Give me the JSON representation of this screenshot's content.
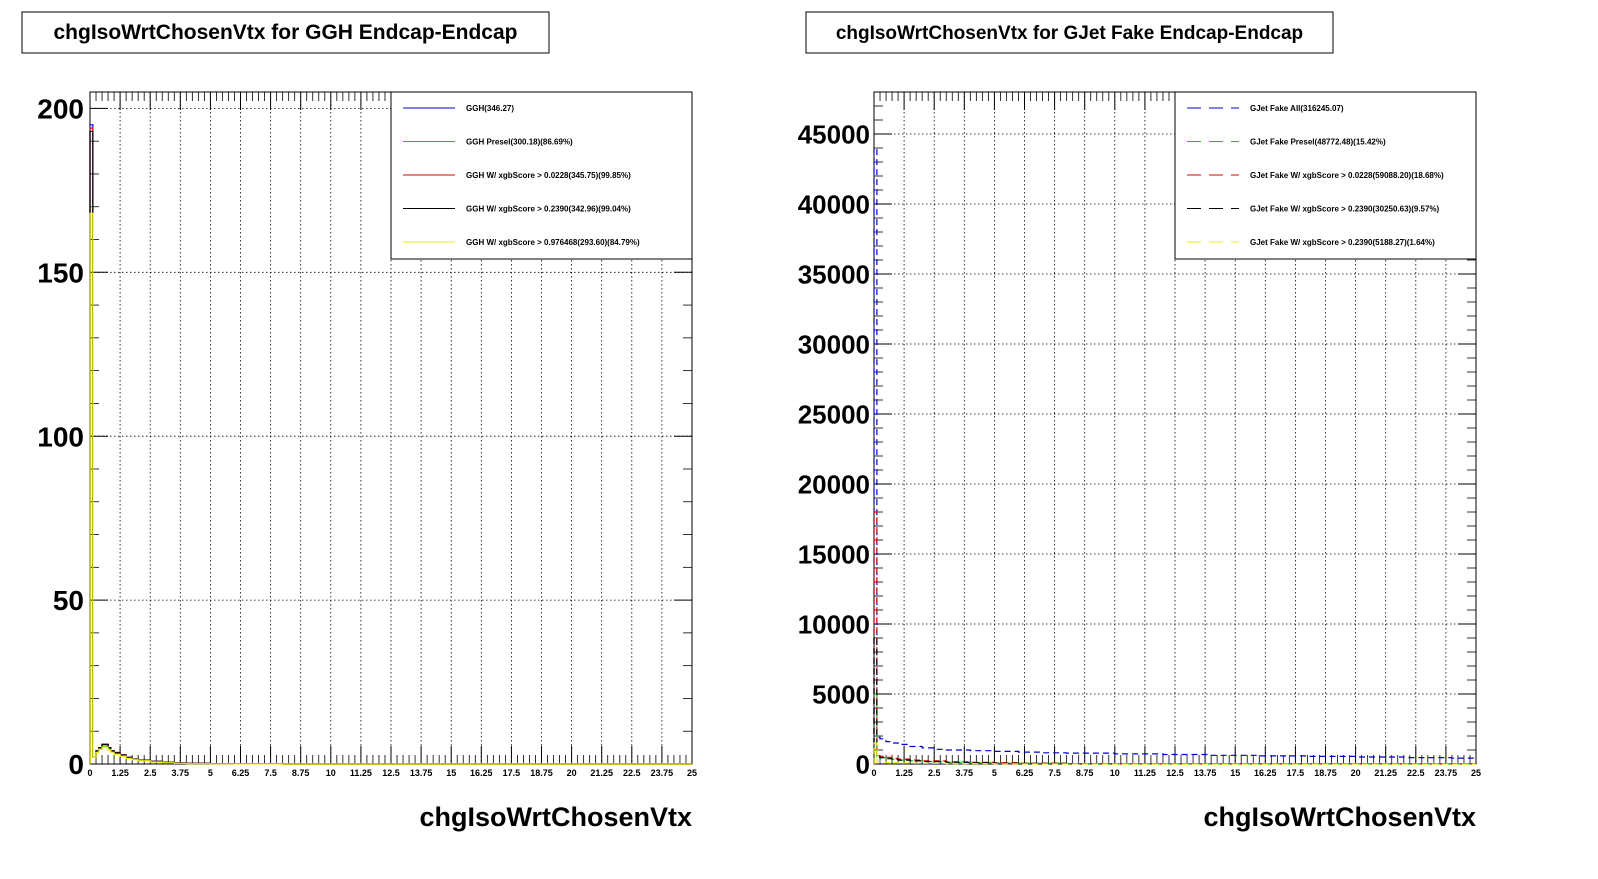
{
  "chart_data": [
    {
      "type": "line",
      "title": "chgIsoWrtChosenVtx for GGH Endcap-Endcap",
      "xlabel": "chgIsoWrtChosenVtx",
      "ylabel": "",
      "xlim": [
        0,
        25
      ],
      "ylim": [
        0,
        205
      ],
      "y_ticks": [
        0,
        50,
        100,
        150,
        200
      ],
      "y_tick_labels": [
        "0",
        "50",
        "100",
        "150",
        "200"
      ],
      "x_ticks": [
        0,
        1.25,
        2.5,
        3.75,
        5,
        6.25,
        7.5,
        8.75,
        10,
        11.25,
        12.5,
        13.75,
        15,
        16.25,
        17.5,
        18.75,
        20,
        21.25,
        22.5,
        23.75,
        25
      ],
      "x_tick_labels": [
        "0",
        "1.25",
        "2.5",
        "3.75",
        "5",
        "6.25",
        "7.5",
        "8.75",
        "10",
        "11.25",
        "12.5",
        "13.75",
        "15",
        "16.25",
        "17.5",
        "18.75",
        "20",
        "21.25",
        "22.5",
        "23.75",
        "25"
      ],
      "grid": true,
      "legend_position": "top-right",
      "series": [
        {
          "name": "GGH(346.27)",
          "color": "#0000cc",
          "dash": false,
          "x": [
            0,
            0.12,
            0.25,
            0.37,
            0.5,
            0.62,
            0.75,
            0.87,
            1,
            1.25,
            1.5,
            1.75,
            2,
            2.5,
            3,
            3.5,
            4,
            5,
            6,
            8,
            12,
            25
          ],
          "y": [
            195,
            2,
            4,
            5,
            6,
            6,
            5,
            4,
            3.5,
            2.8,
            2,
            1.5,
            1.2,
            0.8,
            0.5,
            0.3,
            0.2,
            0.1,
            0.05,
            0,
            0,
            0
          ]
        },
        {
          "name": "GGH Presel(300.18)(86.69%)",
          "color": "#00cc00",
          "dash": false,
          "x": [
            0,
            0.12,
            0.25,
            0.37,
            0.5,
            0.62,
            0.75,
            0.87,
            1,
            1.25,
            1.5,
            1.75,
            2,
            2.5,
            3,
            3.5,
            4,
            5,
            6,
            8,
            12,
            25
          ],
          "y": [
            170,
            2,
            3.5,
            4.5,
            5.5,
            5.5,
            4.5,
            3.8,
            3.2,
            2.5,
            1.8,
            1.4,
            1.1,
            0.7,
            0.45,
            0.25,
            0.15,
            0.08,
            0.04,
            0,
            0,
            0
          ]
        },
        {
          "name": "GGH W/ xgbScore > 0.0228(345.75)(99.85%)",
          "color": "#dd0000",
          "dash": false,
          "x": [
            0,
            0.12,
            0.25,
            0.37,
            0.5,
            0.62,
            0.75,
            0.87,
            1,
            1.25,
            1.5,
            1.75,
            2,
            2.5,
            3,
            3.5,
            4,
            5,
            6,
            8,
            12,
            25
          ],
          "y": [
            194,
            2,
            4,
            5,
            6,
            6,
            5,
            4,
            3.5,
            2.8,
            2,
            1.5,
            1.2,
            0.8,
            0.5,
            0.3,
            0.2,
            0.1,
            0.05,
            0,
            0,
            0
          ]
        },
        {
          "name": "GGH W/ xgbScore > 0.2390(342.96)(99.04%)",
          "color": "#000000",
          "dash": false,
          "x": [
            0,
            0.12,
            0.25,
            0.37,
            0.5,
            0.62,
            0.75,
            0.87,
            1,
            1.25,
            1.5,
            1.75,
            2,
            2.5,
            3,
            3.5,
            4,
            5,
            6,
            8,
            12,
            25
          ],
          "y": [
            193,
            2,
            4,
            5,
            6,
            6,
            5,
            4,
            3.4,
            2.7,
            2,
            1.5,
            1.2,
            0.8,
            0.5,
            0.3,
            0.2,
            0.1,
            0.05,
            0,
            0,
            0
          ]
        },
        {
          "name": "GGH W/ xgbScore > 0.976468(293.60)(84.79%)",
          "color": "#eeee00",
          "dash": false,
          "x": [
            0,
            0.12,
            0.25,
            0.37,
            0.5,
            0.62,
            0.75,
            0.87,
            1,
            1.25,
            1.5,
            1.75,
            2,
            2.5,
            3,
            3.5,
            4,
            5,
            6,
            8,
            12,
            25
          ],
          "y": [
            168,
            2,
            3.5,
            4.5,
            5.2,
            5.2,
            4.3,
            3.6,
            3,
            2.4,
            1.7,
            1.3,
            1,
            0.6,
            0.4,
            0.2,
            0.1,
            0.05,
            0.02,
            0,
            0,
            0
          ]
        }
      ]
    },
    {
      "type": "line",
      "title": "chgIsoWrtChosenVtx for GJet Fake Endcap-Endcap",
      "xlabel": "chgIsoWrtChosenVtx",
      "ylabel": "",
      "xlim": [
        0,
        25
      ],
      "ylim": [
        0,
        48000
      ],
      "y_ticks": [
        0,
        5000,
        10000,
        15000,
        20000,
        25000,
        30000,
        35000,
        40000,
        45000
      ],
      "y_tick_labels": [
        "0",
        "5000",
        "10000",
        "15000",
        "20000",
        "25000",
        "30000",
        "35000",
        "40000",
        "45000"
      ],
      "x_ticks": [
        0,
        1.25,
        2.5,
        3.75,
        5,
        6.25,
        7.5,
        8.75,
        10,
        11.25,
        12.5,
        13.75,
        15,
        16.25,
        17.5,
        18.75,
        20,
        21.25,
        22.5,
        23.75,
        25
      ],
      "x_tick_labels": [
        "0",
        "1.25",
        "2.5",
        "3.75",
        "5",
        "6.25",
        "7.5",
        "8.75",
        "10",
        "11.25",
        "12.5",
        "13.75",
        "15",
        "16.25",
        "17.5",
        "18.75",
        "20",
        "21.25",
        "22.5",
        "23.75",
        "25"
      ],
      "grid": true,
      "legend_position": "top-right",
      "series": [
        {
          "name": "GJet Fake All(316245.07)",
          "color": "#0000cc",
          "dash": true,
          "x": [
            0,
            0.12,
            0.25,
            0.5,
            0.75,
            1,
            1.5,
            2,
            2.5,
            3,
            4,
            5,
            6,
            7,
            8,
            10,
            12,
            14,
            16,
            18,
            20,
            22,
            24,
            25
          ],
          "y": [
            44000,
            1900,
            1800,
            1600,
            1500,
            1400,
            1250,
            1150,
            1050,
            1000,
            950,
            900,
            850,
            800,
            780,
            720,
            680,
            620,
            580,
            540,
            500,
            460,
            420,
            400
          ]
        },
        {
          "name": "GJet Fake Presel(48772.48)(15.42%)",
          "color": "#00cc00",
          "dash": true,
          "x": [
            0,
            0.12,
            0.25,
            0.5,
            0.75,
            1,
            1.5,
            2,
            3,
            4,
            5,
            6,
            8,
            10,
            25
          ],
          "y": [
            5000,
            500,
            450,
            380,
            320,
            280,
            220,
            180,
            120,
            90,
            60,
            40,
            20,
            10,
            0
          ]
        },
        {
          "name": "GJet Fake W/ xgbScore > 0.0228(59088.20)(18.68%)",
          "color": "#dd0000",
          "dash": true,
          "x": [
            0,
            0.12,
            0.25,
            0.5,
            0.75,
            1,
            1.5,
            2,
            3,
            4,
            5,
            6,
            8,
            10,
            25
          ],
          "y": [
            18000,
            600,
            550,
            480,
            400,
            350,
            280,
            230,
            160,
            120,
            90,
            60,
            30,
            15,
            0
          ]
        },
        {
          "name": "GJet Fake W/ xgbScore > 0.2390(30250.63)(9.57%)",
          "color": "#000000",
          "dash": true,
          "x": [
            0,
            0.12,
            0.25,
            0.5,
            0.75,
            1,
            1.5,
            2,
            3,
            4,
            5,
            6,
            8,
            10,
            25
          ],
          "y": [
            9000,
            500,
            450,
            380,
            330,
            280,
            220,
            180,
            120,
            90,
            60,
            40,
            20,
            10,
            0
          ]
        },
        {
          "name": "GJet Fake W/ xgbScore > 0.2390(5188.27)(1.64%)",
          "color": "#eeee00",
          "dash": true,
          "x": [
            0,
            0.12,
            0.25,
            0.5,
            0.75,
            1,
            1.5,
            2,
            3,
            4,
            5,
            6,
            8,
            10,
            25
          ],
          "y": [
            1500,
            150,
            130,
            110,
            90,
            75,
            60,
            48,
            32,
            24,
            16,
            10,
            5,
            2,
            0
          ]
        }
      ]
    }
  ]
}
